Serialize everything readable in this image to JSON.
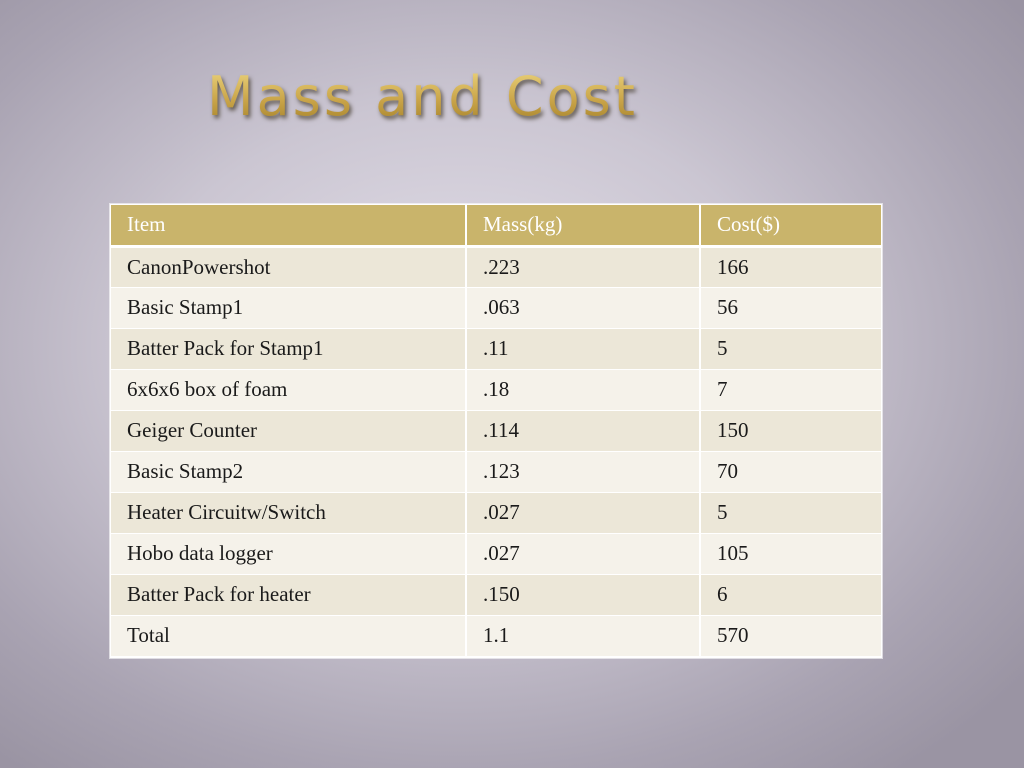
{
  "slide": {
    "title": "Mass and Cost"
  },
  "table": {
    "headers": [
      "Item",
      "Mass(kg)",
      "Cost($)"
    ],
    "rows": [
      [
        "CanonPowershot",
        ".223",
        "166"
      ],
      [
        "Basic Stamp1",
        ".063",
        "56"
      ],
      [
        "Batter Pack for Stamp1",
        ".11",
        "5"
      ],
      [
        "6x6x6 box of foam",
        ".18",
        "7"
      ],
      [
        "Geiger Counter",
        ".114",
        "150"
      ],
      [
        "Basic Stamp2",
        ".123",
        "70"
      ],
      [
        "Heater Circuitw/Switch",
        ".027",
        "5"
      ],
      [
        "Hobo data logger",
        ".027",
        "105"
      ],
      [
        "Batter Pack for heater",
        ".150",
        "6"
      ],
      [
        "Total",
        "1.1",
        "570"
      ]
    ]
  },
  "colors": {
    "header_fill": "#c9b46b",
    "row_band_dark": "#ece7d8",
    "row_band_light": "#f5f2ea",
    "title_gold": "#c8a94a"
  }
}
